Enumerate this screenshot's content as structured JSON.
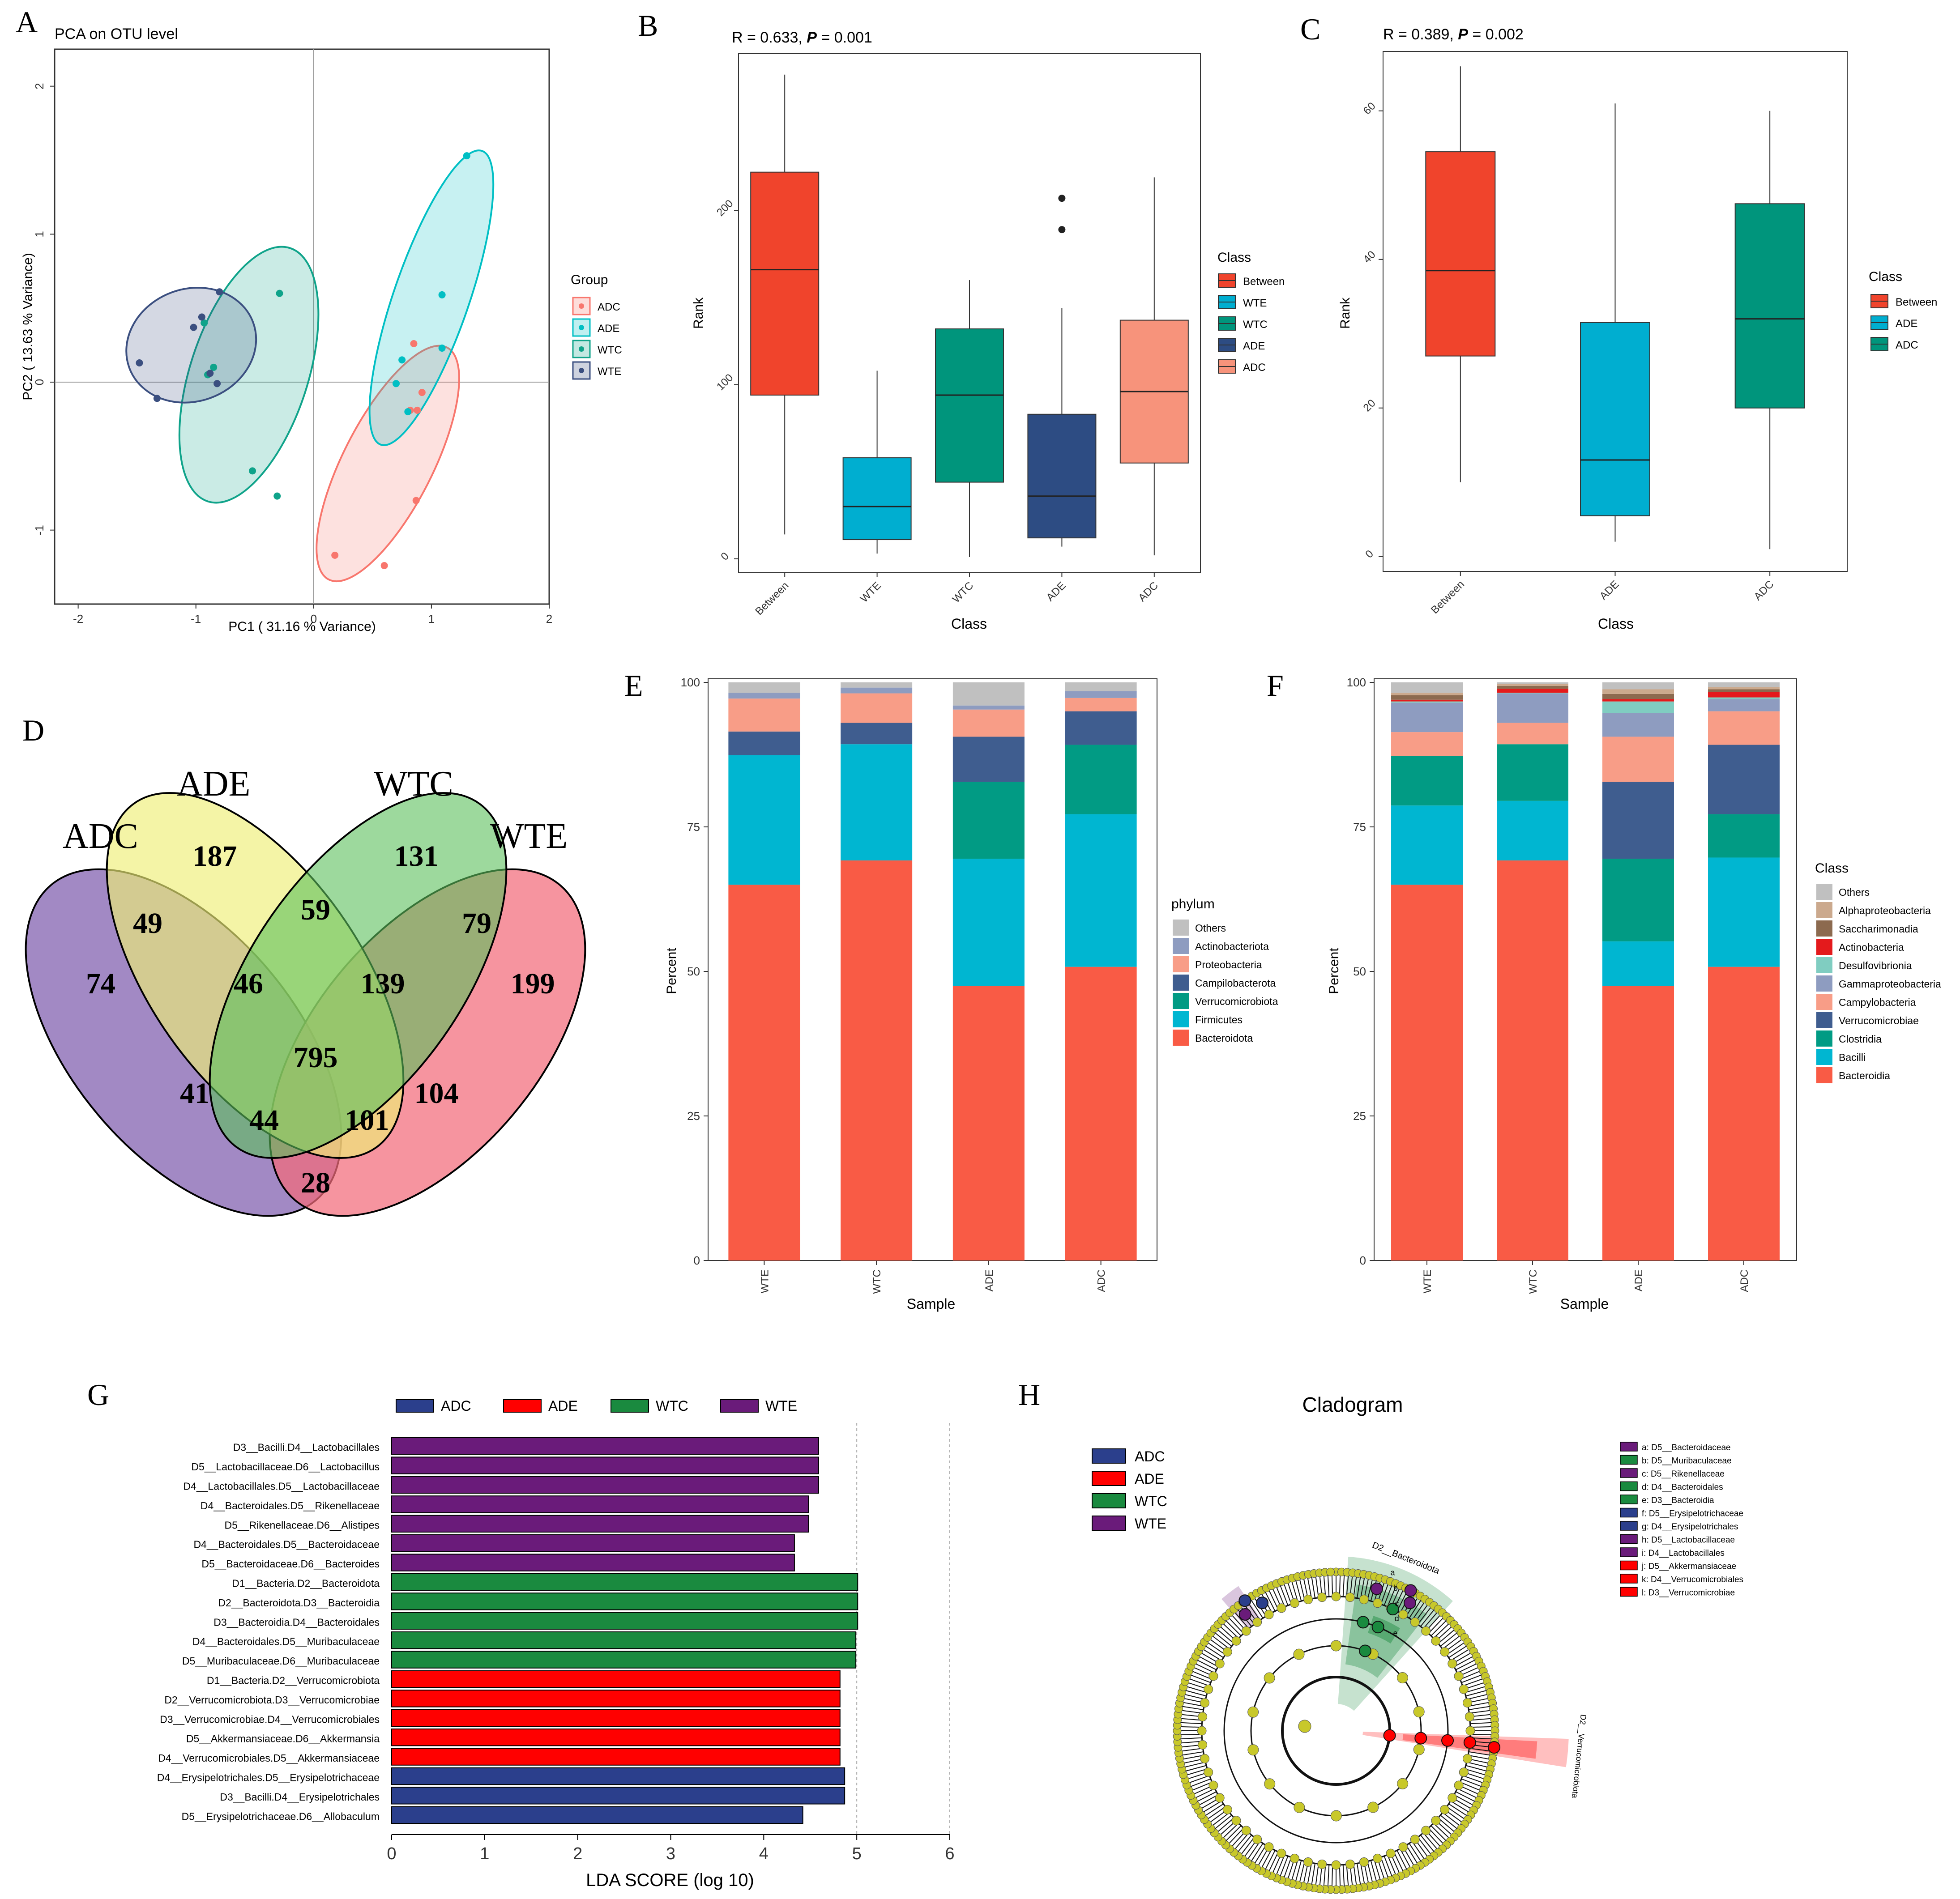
{
  "panels": {
    "A": "A",
    "B": "B",
    "C": "C",
    "D": "D",
    "E": "E",
    "F": "F",
    "G": "G",
    "H": "H"
  },
  "colors": {
    "ADC_pca": "#F8766D",
    "ADE_pca": "#00BFC4",
    "WTC_pca": "#0FA38A",
    "WTE_pca": "#3B4F80",
    "between": "#F0442C",
    "wte_box": "#00AED0",
    "wtc_box": "#00957C",
    "ade_box": "#2D4C83",
    "adc_box": "#F7937B",
    "lefse_ADC": "#2B3F8C",
    "lefse_ADE": "#FF0000",
    "lefse_WTC": "#1A8A3F",
    "lefse_WTE": "#6A1B7A",
    "venn_ADC": "#7E5BAD",
    "venn_ADE": "#EEEE77",
    "venn_WTC": "#5CC05C",
    "venn_WTE": "#F26B7A"
  },
  "chart_data": [
    {
      "id": "A",
      "type": "scatter",
      "title": "PCA on OTU level",
      "xlabel": "PC1 ( 31.16 % Variance)",
      "ylabel": "PC2 ( 13.63 % Variance)",
      "xlim": [
        -2.2,
        2.0
      ],
      "ylim": [
        -1.5,
        2.25
      ],
      "xticks": [
        "-2",
        "-1",
        "0",
        "1",
        "2"
      ],
      "xtick_values": [
        -2,
        -1,
        0,
        1,
        2
      ],
      "yticks": [
        "-1",
        "0",
        "1",
        "2"
      ],
      "ytick_values": [
        -1,
        0,
        1,
        2
      ],
      "legend_title": "Group",
      "series": [
        {
          "name": "ADC",
          "color": "#F8766D",
          "points": [
            [
              0.18,
              -1.17
            ],
            [
              0.6,
              -1.24
            ],
            [
              0.87,
              -0.8
            ],
            [
              0.85,
              0.26
            ],
            [
              0.92,
              -0.07
            ],
            [
              0.88,
              -0.19
            ],
            [
              0.82,
              -0.19
            ]
          ],
          "ellipse": {
            "cx": 0.63,
            "cy": -0.55,
            "rx": 0.38,
            "ry": 0.88,
            "angle": 27
          }
        },
        {
          "name": "ADE",
          "color": "#00BFC4",
          "points": [
            [
              1.3,
              1.53
            ],
            [
              1.09,
              0.59
            ],
            [
              1.09,
              0.23
            ],
            [
              0.7,
              -0.01
            ],
            [
              0.75,
              0.15
            ],
            [
              0.8,
              -0.2
            ]
          ],
          "ellipse": {
            "cx": 1.0,
            "cy": 0.57,
            "rx": 0.32,
            "ry": 1.05,
            "angle": 19
          }
        },
        {
          "name": "WTC",
          "color": "#0FA38A",
          "points": [
            [
              -0.29,
              0.6
            ],
            [
              -0.93,
              0.4
            ],
            [
              -0.85,
              0.1
            ],
            [
              -0.9,
              0.05
            ],
            [
              -0.52,
              -0.6
            ],
            [
              -0.31,
              -0.77
            ]
          ],
          "ellipse": {
            "cx": -0.55,
            "cy": 0.05,
            "rx": 0.5,
            "ry": 0.9,
            "angle": 18
          }
        },
        {
          "name": "WTE",
          "color": "#3B4F80",
          "points": [
            [
              -1.48,
              0.13
            ],
            [
              -1.33,
              -0.11
            ],
            [
              -1.02,
              0.37
            ],
            [
              -0.95,
              0.44
            ],
            [
              -0.8,
              0.61
            ],
            [
              -0.88,
              0.06
            ],
            [
              -0.82,
              -0.01
            ]
          ],
          "ellipse": {
            "cx": -1.04,
            "cy": 0.25,
            "rx": 0.56,
            "ry": 0.38,
            "angle": -20
          }
        }
      ]
    },
    {
      "id": "B",
      "type": "box",
      "title_text": "R = 0.633, ",
      "title_p": "P",
      "title_rest": " = 0.001",
      "xlabel": "Class",
      "ylabel": "Rank",
      "ylim": [
        -8,
        290
      ],
      "yticks": [
        "0",
        "100",
        "200"
      ],
      "ytick_values": [
        0,
        100,
        200
      ],
      "categories": [
        "Between",
        "WTE",
        "WTC",
        "ADE",
        "ADC"
      ],
      "boxes": [
        {
          "name": "Between",
          "color": "#F0442C",
          "min": 14,
          "q1": 94,
          "median": 166,
          "q3": 222,
          "max": 278,
          "outliers": []
        },
        {
          "name": "WTE",
          "color": "#00AED0",
          "min": 3,
          "q1": 11,
          "median": 30,
          "q3": 58,
          "max": 108,
          "outliers": []
        },
        {
          "name": "WTC",
          "color": "#00957C",
          "min": 1,
          "q1": 44,
          "median": 94,
          "q3": 132,
          "max": 160,
          "outliers": []
        },
        {
          "name": "ADE",
          "color": "#2D4C83",
          "min": 7,
          "q1": 12,
          "median": 36,
          "q3": 83,
          "max": 144,
          "outliers": [
            207,
            189
          ]
        },
        {
          "name": "ADC",
          "color": "#F7937B",
          "min": 2,
          "q1": 55,
          "median": 96,
          "q3": 137,
          "max": 219,
          "outliers": []
        }
      ],
      "legend_title": "Class",
      "legend": [
        "Between",
        "WTE",
        "WTC",
        "ADE",
        "ADC"
      ]
    },
    {
      "id": "C",
      "type": "box",
      "title_text": "R = 0.389, ",
      "title_p": "P",
      "title_rest": " = 0.002",
      "xlabel": "Class",
      "ylabel": "Rank",
      "ylim": [
        -2,
        68
      ],
      "yticks": [
        "0",
        "20",
        "40",
        "60"
      ],
      "ytick_values": [
        0,
        20,
        40,
        60
      ],
      "categories": [
        "Between",
        "ADE",
        "ADC"
      ],
      "boxes": [
        {
          "name": "Between",
          "color": "#F0442C",
          "min": 10,
          "q1": 27,
          "median": 38.5,
          "q3": 54.5,
          "max": 66,
          "outliers": []
        },
        {
          "name": "ADE",
          "color": "#00AED0",
          "min": 2,
          "q1": 5.5,
          "median": 13,
          "q3": 31.5,
          "max": 61,
          "outliers": []
        },
        {
          "name": "ADC",
          "color": "#00957C",
          "min": 1,
          "q1": 20,
          "median": 32,
          "q3": 47.5,
          "max": 60,
          "outliers": []
        }
      ],
      "legend_title": "Class",
      "legend": [
        "Between",
        "ADE",
        "ADC"
      ]
    },
    {
      "id": "D",
      "type": "venn",
      "sets": [
        "ADC",
        "ADE",
        "WTC",
        "WTE"
      ],
      "regions": [
        {
          "label": "ADE only",
          "value": "187"
        },
        {
          "label": "WTC only",
          "value": "131"
        },
        {
          "label": "ADC only",
          "value": "74"
        },
        {
          "label": "WTE only",
          "value": "199"
        },
        {
          "label": "ADC∩ADE",
          "value": "49"
        },
        {
          "label": "ADE∩WTC",
          "value": "59"
        },
        {
          "label": "WTC∩WTE",
          "value": "79"
        },
        {
          "label": "ADC∩ADE∩WTC",
          "value": "46"
        },
        {
          "label": "ADE∩WTC∩WTE",
          "value": "139"
        },
        {
          "label": "all",
          "value": "795"
        },
        {
          "label": "ADC∩WTC",
          "value": "41"
        },
        {
          "label": "ADE∩WTE",
          "value": "104"
        },
        {
          "label": "ADC∩WTC∩WTE",
          "value": "44"
        },
        {
          "label": "ADC∩ADE∩WTE",
          "value": "101"
        },
        {
          "label": "ADC∩WTE",
          "value": "28"
        }
      ]
    },
    {
      "id": "E",
      "type": "bar",
      "stacked": true,
      "xlabel": "Sample",
      "ylabel": "Percent",
      "ylim": [
        0,
        100
      ],
      "yticks": [
        "0",
        "25",
        "50",
        "75",
        "100"
      ],
      "ytick_values": [
        0,
        25,
        50,
        75,
        100
      ],
      "categories": [
        "WTE",
        "WTC",
        "ADE",
        "ADC"
      ],
      "legend_title": "phylum",
      "series": [
        {
          "name": "Bacteroidota",
          "color": "#F95B45",
          "values": [
            65,
            69.2,
            47.5,
            50.8
          ]
        },
        {
          "name": "Firmicutes",
          "color": "#00B6D1",
          "values": [
            22.4,
            20.1,
            22,
            26.4
          ]
        },
        {
          "name": "Verrucomicrobiota",
          "color": "#019B84",
          "values": [
            0,
            0,
            13.3,
            12
          ]
        },
        {
          "name": "Campilobacterota",
          "color": "#3F5D8F",
          "values": [
            4.1,
            3.7,
            7.8,
            5.8
          ]
        },
        {
          "name": "Proteobacteria",
          "color": "#F89D87",
          "values": [
            5.7,
            5.1,
            4.7,
            2.3
          ]
        },
        {
          "name": "Actinobacteriota",
          "color": "#8E9CC0",
          "values": [
            1,
            1,
            0.7,
            1.2
          ]
        },
        {
          "name": "Others",
          "color": "#C0C0C0",
          "values": [
            1.8,
            0.9,
            4,
            1.5
          ]
        }
      ],
      "legend": [
        "Others",
        "Actinobacteriota",
        "Proteobacteria",
        "Campilobacterota",
        "Verrucomicrobiota",
        "Firmicutes",
        "Bacteroidota"
      ]
    },
    {
      "id": "F",
      "type": "bar",
      "stacked": true,
      "xlabel": "Sample",
      "ylabel": "Percent",
      "ylim": [
        0,
        100
      ],
      "yticks": [
        "0",
        "25",
        "50",
        "75",
        "100"
      ],
      "ytick_values": [
        0,
        25,
        50,
        75,
        100
      ],
      "categories": [
        "WTE",
        "WTC",
        "ADE",
        "ADC"
      ],
      "legend_title": "Class",
      "series": [
        {
          "name": "Bacteroidia",
          "color": "#F95B45",
          "values": [
            65,
            69.2,
            47.5,
            50.8
          ]
        },
        {
          "name": "Bacilli",
          "color": "#00B6D1",
          "values": [
            13.7,
            10.3,
            7.7,
            18.9
          ]
        },
        {
          "name": "Clostridia",
          "color": "#019B84",
          "values": [
            8.6,
            9.8,
            14.3,
            7.5
          ]
        },
        {
          "name": "Verrucomicrobiae",
          "color": "#3F5D8F",
          "values": [
            0,
            0,
            13.3,
            12
          ]
        },
        {
          "name": "Campylobacteria",
          "color": "#F89D87",
          "values": [
            4.1,
            3.7,
            7.8,
            5.8
          ]
        },
        {
          "name": "Gammaproteobacteria",
          "color": "#8E9CC0",
          "values": [
            5.1,
            5.1,
            4.1,
            2.1
          ]
        },
        {
          "name": "Desulfovibrionia",
          "color": "#80CDC1",
          "values": [
            0.2,
            0.1,
            2,
            0.3
          ]
        },
        {
          "name": "Actinobacteria",
          "color": "#E41A1C",
          "values": [
            0.3,
            0.7,
            0.4,
            0.9
          ]
        },
        {
          "name": "Saccharimonadia",
          "color": "#8C6A4F",
          "values": [
            0.8,
            0.5,
            0.9,
            0.5
          ]
        },
        {
          "name": "Alphaproteobacteria",
          "color": "#CBA98D",
          "values": [
            0.4,
            0.3,
            0.8,
            0.4
          ]
        },
        {
          "name": "Others",
          "color": "#C0C0C0",
          "values": [
            1.8,
            0.3,
            1.2,
            0.8
          ]
        }
      ],
      "legend": [
        "Others",
        "Alphaproteobacteria",
        "Saccharimonadia",
        "Actinobacteria",
        "Desulfovibrionia",
        "Gammaproteobacteria",
        "Campylobacteria",
        "Verrucomicrobiae",
        "Clostridia",
        "Bacilli",
        "Bacteroidia"
      ]
    },
    {
      "id": "G",
      "type": "bar",
      "orientation": "horizontal",
      "xlabel": "LDA SCORE (log 10)",
      "xlim": [
        0,
        6
      ],
      "xticks": [
        "0",
        "1",
        "2",
        "3",
        "4",
        "5",
        "6"
      ],
      "xtick_values": [
        0,
        1,
        2,
        3,
        4,
        5,
        6
      ],
      "legend": [
        "ADC",
        "ADE",
        "WTC",
        "WTE"
      ],
      "bars": [
        {
          "label": "D3__Bacilli.D4__Lactobacillales",
          "group": "WTE",
          "value": 4.59
        },
        {
          "label": "D5__Lactobacillaceae.D6__Lactobacillus",
          "group": "WTE",
          "value": 4.59
        },
        {
          "label": "D4__Lactobacillales.D5__Lactobacillaceae",
          "group": "WTE",
          "value": 4.59
        },
        {
          "label": "D4__Bacteroidales.D5__Rikenellaceae",
          "group": "WTE",
          "value": 4.48
        },
        {
          "label": "D5__Rikenellaceae.D6__Alistipes",
          "group": "WTE",
          "value": 4.48
        },
        {
          "label": "D4__Bacteroidales.D5__Bacteroidaceae",
          "group": "WTE",
          "value": 4.33
        },
        {
          "label": "D5__Bacteroidaceae.D6__Bacteroides",
          "group": "WTE",
          "value": 4.33
        },
        {
          "label": "D1__Bacteria.D2__Bacteroidota",
          "group": "WTC",
          "value": 5.01
        },
        {
          "label": "D2__Bacteroidota.D3__Bacteroidia",
          "group": "WTC",
          "value": 5.01
        },
        {
          "label": "D3__Bacteroidia.D4__Bacteroidales",
          "group": "WTC",
          "value": 5.01
        },
        {
          "label": "D4__Bacteroidales.D5__Muribaculaceae",
          "group": "WTC",
          "value": 4.99
        },
        {
          "label": "D5__Muribaculaceae.D6__Muribaculaceae",
          "group": "WTC",
          "value": 4.99
        },
        {
          "label": "D1__Bacteria.D2__Verrucomicrobiota",
          "group": "ADE",
          "value": 4.82
        },
        {
          "label": "D2__Verrucomicrobiota.D3__Verrucomicrobiae",
          "group": "ADE",
          "value": 4.82
        },
        {
          "label": "D3__Verrucomicrobiae.D4__Verrucomicrobiales",
          "group": "ADE",
          "value": 4.82
        },
        {
          "label": "D5__Akkermansiaceae.D6__Akkermansia",
          "group": "ADE",
          "value": 4.82
        },
        {
          "label": "D4__Verrucomicrobiales.D5__Akkermansiaceae",
          "group": "ADE",
          "value": 4.82
        },
        {
          "label": "D4__Erysipelotrichales.D5__Erysipelotrichaceae",
          "group": "ADC",
          "value": 4.87
        },
        {
          "label": "D3__Bacilli.D4__Erysipelotrichales",
          "group": "ADC",
          "value": 4.87
        },
        {
          "label": "D5__Erysipelotrichaceae.D6__Allobaculum",
          "group": "ADC",
          "value": 4.42
        }
      ]
    },
    {
      "id": "H",
      "type": "cladogram",
      "title": "Cladogram",
      "legend": [
        "ADC",
        "ADE",
        "WTC",
        "WTE"
      ],
      "clade_labels": [
        "D2__Bacteroidota",
        "D2__Verrucomicrobiota"
      ],
      "arc_letters": [
        "a",
        "b",
        "c",
        "d",
        "e"
      ],
      "key": [
        {
          "text": "a: D5__Bacteroidaceae",
          "group": "WTE"
        },
        {
          "text": "b: D5__Muribaculaceae",
          "group": "WTC"
        },
        {
          "text": "c: D5__Rikenellaceae",
          "group": "WTE"
        },
        {
          "text": "d: D4__Bacteroidales",
          "group": "WTC"
        },
        {
          "text": "e: D3__Bacteroidia",
          "group": "WTC"
        },
        {
          "text": "f: D5__Erysipelotrichaceae",
          "group": "ADC"
        },
        {
          "text": "g: D4__Erysipelotrichales",
          "group": "ADC"
        },
        {
          "text": "h: D5__Lactobacillaceae",
          "group": "WTE"
        },
        {
          "text": "i: D4__Lactobacillales",
          "group": "WTE"
        },
        {
          "text": "j: D5__Akkermansiaceae",
          "group": "ADE"
        },
        {
          "text": "k: D4__Verrucomicrobiales",
          "group": "ADE"
        },
        {
          "text": "l: D3__Verrucomicrobiae",
          "group": "ADE"
        }
      ]
    }
  ]
}
